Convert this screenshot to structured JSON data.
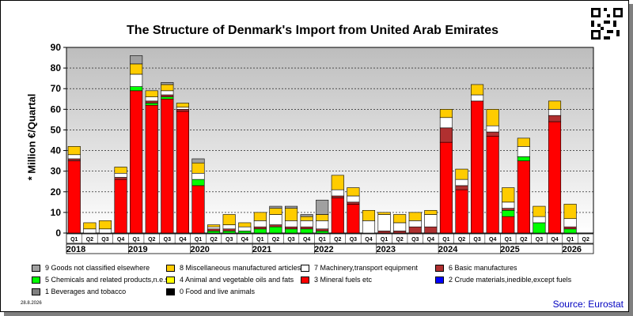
{
  "title": "The Structure of Denmark's Import from United Arab Emirates",
  "date_stamp": "28.8.2026",
  "source": "Source: Eurostat",
  "chart_data": {
    "type": "bar",
    "stacked": true,
    "ylabel": "* Million €/Quartal",
    "ylim": [
      0,
      90
    ],
    "yticks": [
      0,
      10,
      20,
      30,
      40,
      50,
      60,
      70,
      80,
      90
    ],
    "grid": true,
    "legend_position": "bottom",
    "quarter_labels": [
      "Q1",
      "Q2",
      "Q3",
      "Q4",
      "Q1",
      "Q2",
      "Q3",
      "Q4",
      "Q1",
      "Q2",
      "Q3",
      "Q4",
      "Q1",
      "Q2",
      "Q3",
      "Q4",
      "Q1",
      "Q2",
      "Q3",
      "Q4",
      "Q1",
      "Q2",
      "Q3",
      "Q4",
      "Q1",
      "Q2",
      "Q3",
      "Q4",
      "Q1",
      "Q2",
      "Q3",
      "Q4",
      "Q1",
      "Q2"
    ],
    "years": [
      "2018",
      "2019",
      "2020",
      "2021",
      "2022",
      "2023",
      "2024",
      "2025",
      "2026"
    ],
    "series": [
      {
        "name": "0 Food and live animals",
        "color": "#000000",
        "values": [
          0,
          0,
          0,
          0,
          0,
          0,
          0,
          0,
          0,
          0,
          0,
          0,
          0,
          0,
          0,
          0,
          0,
          0,
          0,
          0,
          0,
          0,
          0,
          0,
          0,
          0,
          0,
          0,
          0,
          0,
          0,
          0,
          0,
          0
        ]
      },
      {
        "name": "1 Beverages and tobacco",
        "color": "#808080",
        "values": [
          0,
          0,
          0,
          0,
          0,
          0,
          0,
          0,
          0,
          0,
          0,
          0,
          0,
          0,
          0,
          0,
          0,
          0,
          0,
          0,
          0,
          0,
          0,
          0,
          0,
          0,
          0,
          0,
          0,
          0,
          0,
          0,
          0,
          0
        ]
      },
      {
        "name": "2 Crude materials,inedible,except fuels",
        "color": "#0000ff",
        "values": [
          0,
          0,
          0,
          0,
          0,
          0,
          0,
          0,
          0,
          0,
          0,
          0,
          0,
          0,
          0,
          0,
          0,
          0,
          0,
          0,
          0,
          0,
          0,
          0,
          0,
          0,
          0,
          0,
          0,
          0,
          0,
          0,
          0,
          0
        ]
      },
      {
        "name": "3 Mineral fuels etc",
        "color": "#ff0000",
        "values": [
          35,
          0,
          0,
          26,
          69,
          62,
          65,
          59,
          23,
          0,
          0,
          0,
          0,
          0,
          0,
          0,
          0,
          17,
          14,
          0,
          0,
          0,
          0,
          0,
          44,
          21,
          64,
          47,
          8,
          35,
          0,
          54,
          0,
          0
        ]
      },
      {
        "name": "4 Animal and vegetable oils and fats",
        "color": "#ffff00",
        "values": [
          0,
          0,
          0,
          0,
          0,
          0,
          0,
          0,
          0,
          0,
          0,
          0,
          0,
          0,
          0,
          0,
          0,
          0,
          0,
          0,
          0,
          0,
          0,
          0,
          0,
          0,
          0,
          0,
          0,
          0,
          0,
          0,
          0,
          0
        ]
      },
      {
        "name": "5 Chemicals and related products,n.e.s.",
        "color": "#00ff00",
        "values": [
          0,
          0,
          0,
          0,
          2,
          1,
          1,
          0,
          3,
          1,
          1,
          1,
          2,
          3,
          2,
          2,
          1,
          0,
          0,
          0,
          0,
          0,
          0,
          0,
          0,
          0,
          0,
          0,
          3,
          2,
          5,
          0,
          2,
          0
        ]
      },
      {
        "name": "6 Basic manufactures",
        "color": "#b03030",
        "values": [
          1,
          0,
          0,
          1,
          0,
          1,
          1,
          1,
          0,
          1,
          1,
          0,
          1,
          1,
          1,
          1,
          1,
          1,
          1,
          0,
          1,
          1,
          3,
          3,
          7,
          2,
          0,
          2,
          1,
          0,
          0,
          3,
          1,
          0
        ]
      },
      {
        "name": "7 Machinery,transport equipment",
        "color": "#ffffff",
        "values": [
          2,
          2,
          2,
          2,
          6,
          2,
          2,
          1,
          3,
          1,
          2,
          2,
          3,
          5,
          3,
          3,
          4,
          3,
          3,
          6,
          8,
          4,
          3,
          6,
          5,
          3,
          3,
          3,
          3,
          5,
          3,
          3,
          4,
          0
        ]
      },
      {
        "name": "8 Miscellaneous manufactured articles",
        "color": "#ffcc00",
        "values": [
          4,
          3,
          4,
          3,
          5,
          3,
          3,
          2,
          5,
          1,
          5,
          2,
          4,
          3,
          6,
          2,
          3,
          7,
          4,
          5,
          1,
          4,
          4,
          2,
          4,
          5,
          5,
          8,
          7,
          4,
          5,
          4,
          7,
          0
        ]
      },
      {
        "name": "9 Goods not classified elsewhere",
        "color": "#a0a0a0",
        "values": [
          0,
          0,
          0,
          0,
          4,
          0,
          1,
          0,
          2,
          0,
          0,
          0,
          0,
          1,
          1,
          1,
          7,
          0,
          0,
          0,
          0,
          0,
          0,
          0,
          0,
          0,
          0,
          0,
          0,
          0,
          0,
          0,
          0,
          0
        ]
      }
    ]
  }
}
